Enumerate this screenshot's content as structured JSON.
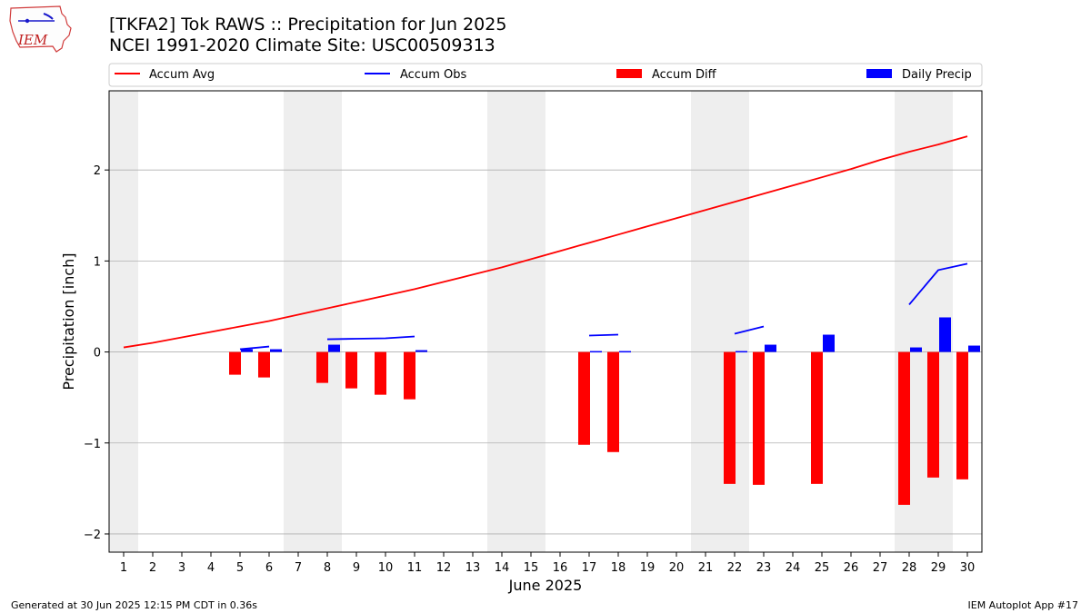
{
  "header": {
    "title_line1": "[TKFA2] Tok RAWS :: Precipitation for Jun 2025",
    "title_line2": "NCEI 1991-2020 Climate Site: USC00509313"
  },
  "logo": {
    "text": "IEM"
  },
  "footer": {
    "left": "Generated at 30 Jun 2025 12:15 PM CDT in 0.36s",
    "right": "IEM Autoplot App #17"
  },
  "colors": {
    "accum_avg": "#ff0000",
    "accum_obs": "#0000ff",
    "accum_diff": "#ff0000",
    "daily_precip": "#0000ff",
    "weekend_shade": "#eeeeee",
    "grid": "#b0b0b0"
  },
  "chart_data": {
    "type": "bar",
    "xlabel": "June 2025",
    "ylabel": "Precipitation [inch]",
    "ylim": [
      -2.2,
      2.87
    ],
    "yticks": [
      -2,
      -1,
      0,
      1,
      2
    ],
    "ytick_labels": [
      "−2",
      "−1",
      "0",
      "1",
      "2"
    ],
    "grid": "horizontal",
    "legend_position": "top",
    "days": [
      1,
      2,
      3,
      4,
      5,
      6,
      7,
      8,
      9,
      10,
      11,
      12,
      13,
      14,
      15,
      16,
      17,
      18,
      19,
      20,
      21,
      22,
      23,
      24,
      25,
      26,
      27,
      28,
      29,
      30
    ],
    "shaded_days": [
      1,
      7,
      8,
      14,
      15,
      21,
      22,
      28,
      29
    ],
    "legend": [
      "Accum Avg",
      "Accum Obs",
      "Accum Diff",
      "Daily Precip"
    ],
    "series": [
      {
        "name": "Accum Avg",
        "kind": "line",
        "values": [
          0.05,
          0.1,
          0.16,
          0.22,
          0.28,
          0.34,
          0.41,
          0.48,
          0.55,
          0.62,
          0.69,
          0.77,
          0.85,
          0.93,
          1.02,
          1.11,
          1.2,
          1.29,
          1.38,
          1.47,
          1.56,
          1.65,
          1.74,
          1.83,
          1.92,
          2.01,
          2.11,
          2.2,
          2.28,
          2.37
        ]
      },
      {
        "name": "Accum Obs",
        "kind": "line",
        "values": [
          null,
          null,
          null,
          null,
          0.03,
          0.06,
          null,
          0.14,
          0.145,
          0.15,
          0.17,
          null,
          null,
          null,
          null,
          null,
          0.18,
          0.19,
          null,
          null,
          null,
          0.2,
          0.28,
          null,
          null,
          null,
          null,
          0.52,
          0.9,
          0.97
        ]
      },
      {
        "name": "Accum Diff",
        "kind": "bar",
        "values": [
          null,
          null,
          null,
          null,
          -0.25,
          -0.28,
          null,
          -0.34,
          -0.4,
          -0.47,
          -0.52,
          null,
          null,
          null,
          null,
          null,
          -1.02,
          -1.1,
          null,
          null,
          null,
          -1.45,
          -1.46,
          null,
          -1.45,
          null,
          null,
          -1.68,
          -1.38,
          -1.4
        ]
      },
      {
        "name": "Daily Precip",
        "kind": "bar",
        "values": [
          null,
          null,
          null,
          null,
          0.03,
          0.03,
          null,
          0.08,
          null,
          null,
          0.02,
          null,
          null,
          null,
          null,
          null,
          0.01,
          0.01,
          null,
          null,
          null,
          0.01,
          0.08,
          null,
          0.19,
          null,
          null,
          0.05,
          0.38,
          0.07
        ]
      }
    ]
  }
}
